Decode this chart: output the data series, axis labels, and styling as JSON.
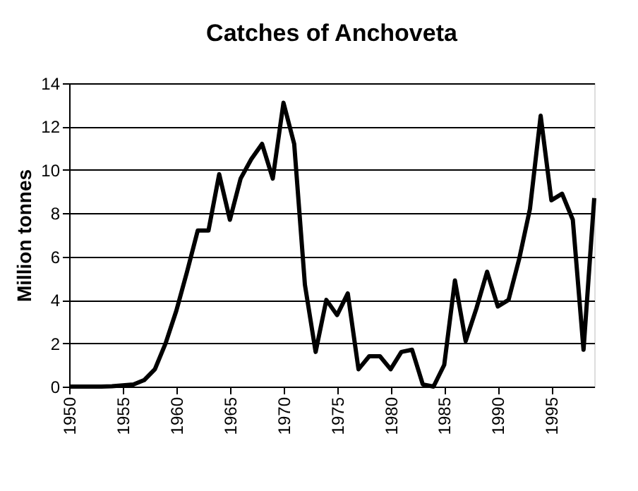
{
  "chart_data": {
    "type": "line",
    "title": "Catches of Anchoveta",
    "ylabel": "Million tonnes",
    "x": [
      1950,
      1951,
      1952,
      1953,
      1954,
      1955,
      1956,
      1957,
      1958,
      1959,
      1960,
      1961,
      1962,
      1963,
      1964,
      1965,
      1966,
      1967,
      1968,
      1969,
      1970,
      1971,
      1972,
      1973,
      1974,
      1975,
      1976,
      1977,
      1978,
      1979,
      1980,
      1981,
      1982,
      1983,
      1984,
      1985,
      1986,
      1987,
      1988,
      1989,
      1990,
      1991,
      1992,
      1993,
      1994,
      1995,
      1996,
      1997,
      1998,
      1999
    ],
    "series": [
      {
        "color": "#000000",
        "values": [
          0,
          0,
          0,
          0,
          0.02,
          0.06,
          0.1,
          0.3,
          0.8,
          2.0,
          3.5,
          5.3,
          7.2,
          7.2,
          9.8,
          7.7,
          9.6,
          10.5,
          11.2,
          9.6,
          13.1,
          11.2,
          4.7,
          1.6,
          4.0,
          3.3,
          4.3,
          0.8,
          1.4,
          1.4,
          0.8,
          1.6,
          1.7,
          0.1,
          0.0,
          1.0,
          4.9,
          2.1,
          3.6,
          5.3,
          3.7,
          4.0,
          5.9,
          8.2,
          12.5,
          8.6,
          8.9,
          7.7,
          1.7,
          8.7
        ]
      }
    ],
    "xlim": [
      1950,
      1999
    ],
    "xticks": [
      1950,
      1955,
      1960,
      1965,
      1970,
      1975,
      1980,
      1985,
      1990,
      1995
    ],
    "ylim": [
      0,
      14
    ],
    "yticks": [
      0,
      2,
      4,
      6,
      8,
      10,
      12,
      14
    ],
    "grid": "y",
    "marker": "none",
    "line_style": "solid"
  }
}
